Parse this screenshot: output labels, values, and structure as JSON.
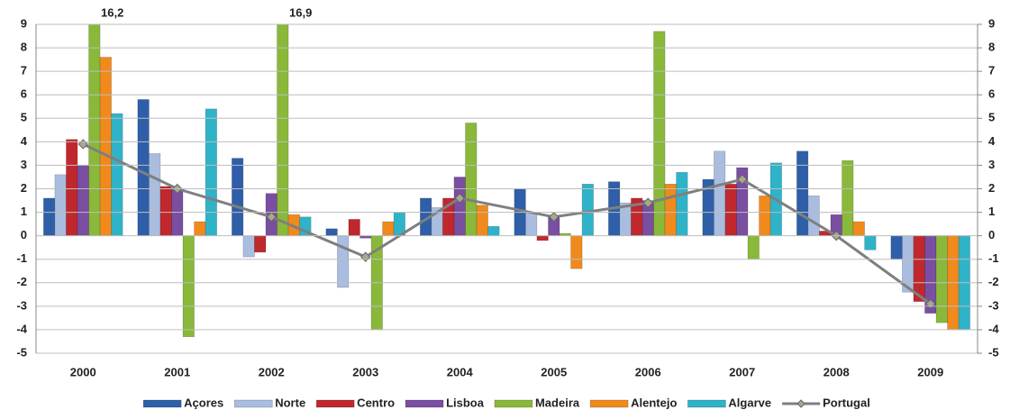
{
  "chart_data": {
    "type": "bar",
    "categories": [
      "2000",
      "2001",
      "2002",
      "2003",
      "2004",
      "2005",
      "2006",
      "2007",
      "2008",
      "2009"
    ],
    "series": [
      {
        "name": "Açores",
        "color": "#2e5fa8",
        "values": [
          1.6,
          5.8,
          3.3,
          0.3,
          1.6,
          2.0,
          2.3,
          2.4,
          3.6,
          -1.0
        ]
      },
      {
        "name": "Norte",
        "color": "#a9bde0",
        "values": [
          2.6,
          3.5,
          -0.9,
          -2.2,
          1.2,
          1.0,
          1.4,
          3.6,
          1.7,
          -2.4
        ]
      },
      {
        "name": "Centro",
        "color": "#c0282d",
        "values": [
          4.1,
          2.1,
          -0.7,
          0.7,
          1.6,
          -0.2,
          1.6,
          2.2,
          0.2,
          -2.8
        ]
      },
      {
        "name": "Lisboa",
        "color": "#7a4ea0",
        "values": [
          3.0,
          2.0,
          1.8,
          -0.1,
          2.5,
          0.8,
          1.5,
          2.9,
          0.9,
          -3.3
        ]
      },
      {
        "name": "Madeira",
        "color": "#8ab83a",
        "values": [
          16.2,
          -4.3,
          16.9,
          -4.0,
          4.8,
          0.1,
          8.7,
          -1.0,
          3.2,
          -3.7
        ],
        "value_labels": [
          "16,2",
          null,
          "16,9",
          null,
          null,
          null,
          null,
          null,
          null,
          null
        ]
      },
      {
        "name": "Alentejo",
        "color": "#f08a1d",
        "values": [
          7.6,
          0.6,
          0.9,
          0.6,
          1.3,
          -1.4,
          2.2,
          1.7,
          0.6,
          -4.0
        ]
      },
      {
        "name": "Algarve",
        "color": "#2fb3c9",
        "values": [
          5.2,
          5.4,
          0.8,
          1.0,
          0.4,
          2.2,
          2.7,
          3.1,
          -0.6,
          -4.0
        ]
      },
      {
        "name": "Portugal",
        "type": "line",
        "color": "#7f7f7f",
        "values": [
          3.9,
          2.0,
          0.8,
          -0.9,
          1.6,
          0.8,
          1.4,
          2.4,
          0.0,
          -2.9
        ]
      }
    ],
    "ylim": [
      -5,
      9
    ],
    "yticks": [
      -5,
      -4,
      -3,
      -2,
      -1,
      0,
      1,
      2,
      3,
      4,
      5,
      6,
      7,
      8,
      9
    ],
    "y2lim": [
      -5,
      9
    ],
    "y2ticks": [
      -5,
      -4,
      -3,
      -2,
      -1,
      0,
      1,
      2,
      3,
      4,
      5,
      6,
      7,
      8,
      9
    ],
    "grid": true,
    "legend": "bottom"
  }
}
